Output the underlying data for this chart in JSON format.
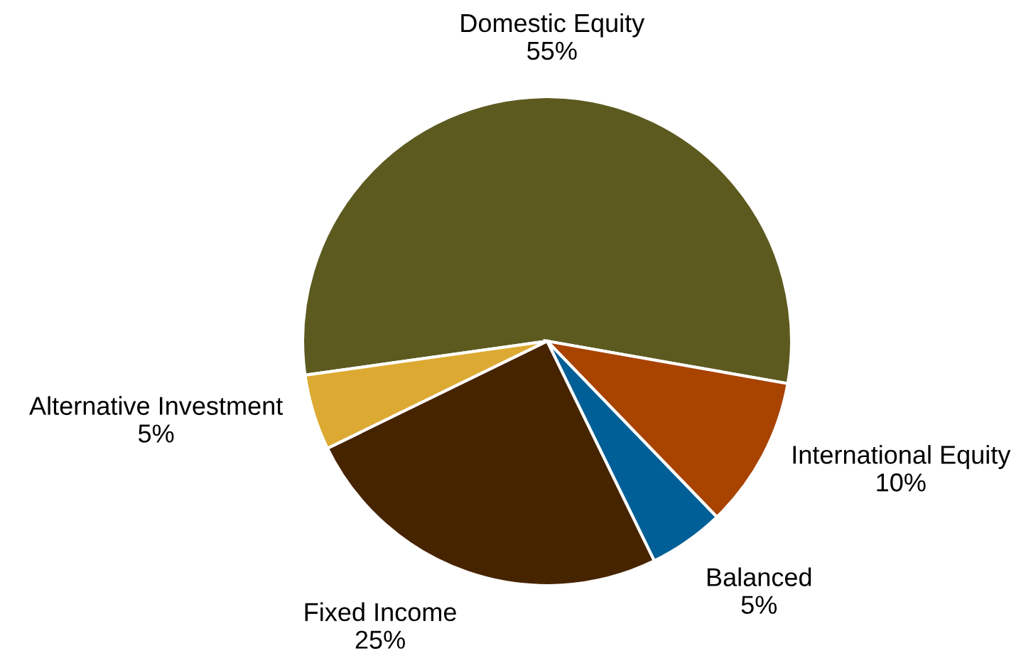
{
  "chart_data": {
    "type": "pie",
    "categories": [
      "Domestic Equity",
      "International Equity",
      "Balanced",
      "Fixed Income",
      "Alternative Investment"
    ],
    "values": [
      55,
      10,
      5,
      25,
      5
    ],
    "colors": [
      "#5c5a1f",
      "#a84300",
      "#005f96",
      "#472400",
      "#dcaa32"
    ],
    "value_labels": [
      "55%",
      "10%",
      "5%",
      "25%",
      "5%"
    ]
  }
}
